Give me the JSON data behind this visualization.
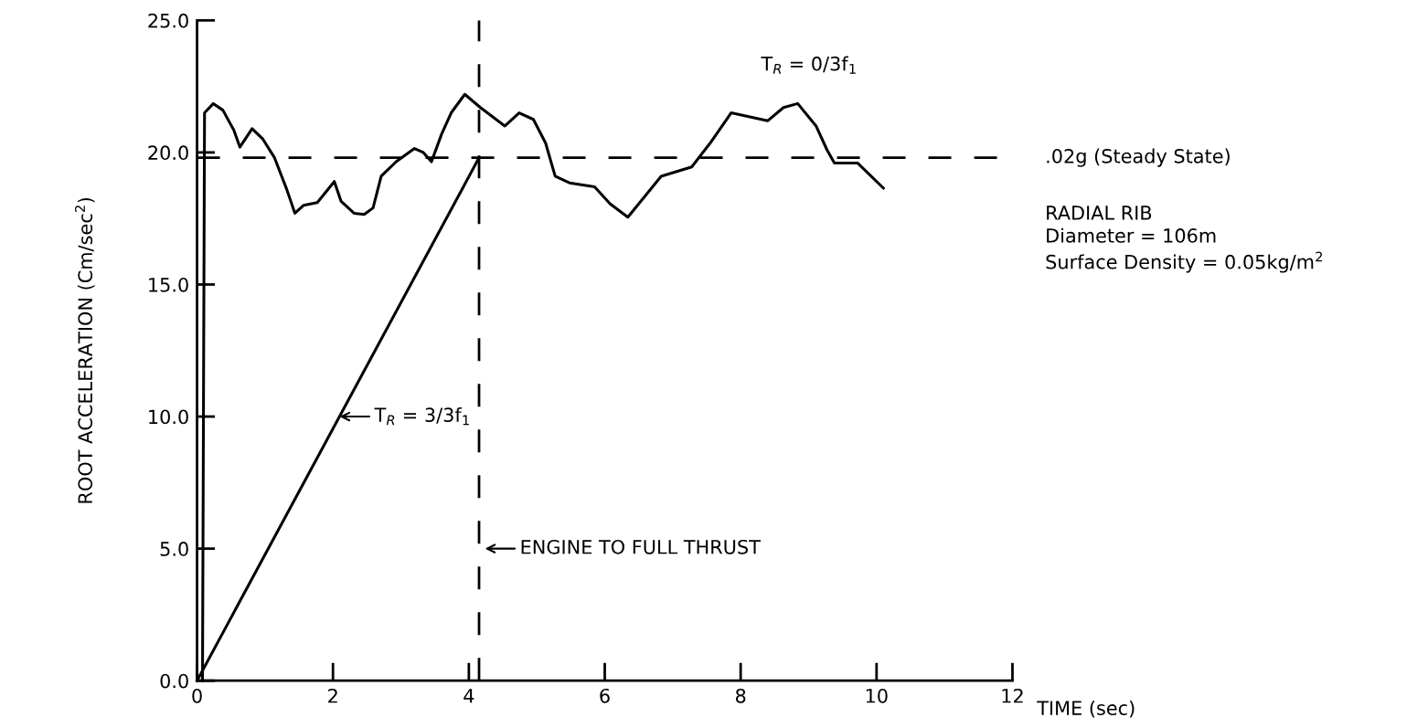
{
  "chart_data": {
    "type": "line",
    "xlabel": "TIME (sec)",
    "ylabel": "ROOT ACCELERATION (Cm/sec$^{2}$)",
    "series": [
      {
        "color": "#000000",
        "x": [
          0.08,
          0.11,
          0.24,
          0.38,
          0.54,
          0.63,
          0.81,
          0.97,
          1.14,
          1.32,
          1.44,
          1.57,
          1.77,
          2.02,
          2.12,
          2.31,
          2.46,
          2.59,
          2.71,
          2.93,
          3.2,
          3.33,
          3.45,
          3.6,
          3.74,
          3.94,
          4.17,
          4.53,
          4.74,
          4.95,
          5.13,
          5.27,
          5.48,
          5.85,
          6.08,
          6.34,
          6.83,
          7.28,
          7.55,
          7.86,
          8.4,
          8.63,
          8.84,
          9.11,
          9.27,
          9.38,
          9.72,
          10.1
        ],
        "values": [
          0.0,
          21.5,
          21.85,
          21.6,
          20.85,
          20.2,
          20.9,
          20.5,
          19.8,
          18.6,
          17.7,
          18.0,
          18.1,
          18.9,
          18.15,
          17.7,
          17.65,
          17.9,
          19.1,
          19.65,
          20.15,
          20.0,
          19.65,
          20.7,
          21.5,
          22.2,
          21.7,
          21.0,
          21.5,
          21.25,
          20.35,
          19.1,
          18.85,
          18.7,
          18.05,
          17.55,
          19.1,
          19.45,
          20.35,
          21.5,
          21.2,
          21.7,
          21.85,
          21.0,
          20.1,
          19.6,
          19.6,
          18.65
        ]
      },
      {
        "color": "#000000",
        "x": [
          0,
          4.15
        ],
        "values": [
          0,
          19.8
        ]
      }
    ],
    "xlim": [
      0,
      12
    ],
    "xticks": [
      0,
      2,
      4,
      6,
      8,
      10,
      12
    ],
    "ylim": [
      0,
      25
    ],
    "yticks": [
      {
        "value": 0,
        "label": "0.0"
      },
      {
        "value": 5,
        "label": "5.0"
      },
      {
        "value": 10,
        "label": "10.0"
      },
      {
        "value": 15,
        "label": "15.0"
      },
      {
        "value": 20,
        "label": "20.0"
      },
      {
        "value": 25,
        "label": "25.0"
      }
    ],
    "ref_lines": [
      {
        "axis": "y",
        "value": 19.8,
        "label": ".02g (Steady State)",
        "line_style": "dashed",
        "color": "#000000"
      },
      {
        "axis": "x",
        "value": 4.15,
        "label": "ENGINE TO FULL THRUST",
        "line_style": "dashed",
        "color": "#000000"
      }
    ],
    "annotations": [
      "T$_{R}$ = 0/3f$_{1}$",
      "RADIAL RIB\nDiameter = 106m\nSurface Density = 0.05kg/m$^{2}$",
      {
        "text": "T$_{R}$ = 3/3f$_{1}$",
        "x": 2.06,
        "y": 10.0
      }
    ],
    "grid": false,
    "legend": false,
    "marker": "none",
    "line_style": "solid"
  }
}
